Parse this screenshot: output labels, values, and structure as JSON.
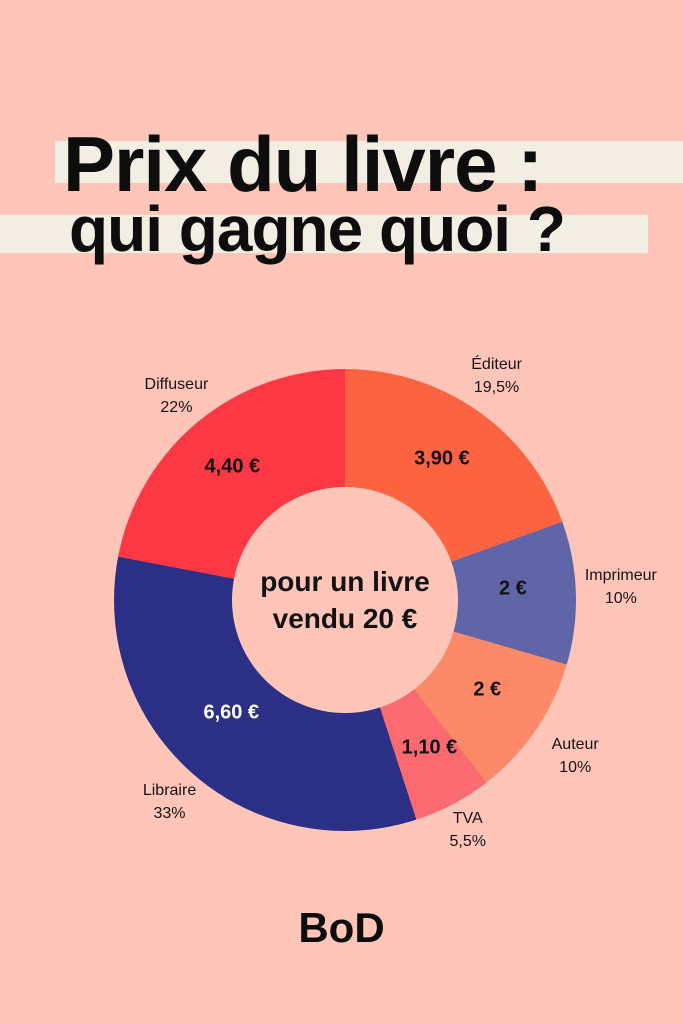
{
  "page": {
    "background": "#FFC5B9",
    "highlight": "#F2EEE3",
    "text_color": "#121212"
  },
  "title": {
    "line1": "Prix du livre :",
    "line2": "qui gagne quoi ?"
  },
  "chart_data": {
    "type": "pie",
    "subtype": "donut",
    "start_angle_deg": 0,
    "direction": "clockwise",
    "unit": "€",
    "center_label_line1": "pour un livre",
    "center_label_line2": "vendu 20 €",
    "segments": [
      {
        "name": "Éditeur",
        "pct": 19.5,
        "pct_label": "19,5%",
        "amount": 3.9,
        "amount_label": "3,90 €",
        "color": "#FB6341",
        "value_color": "#121212"
      },
      {
        "name": "Imprimeur",
        "pct": 10,
        "pct_label": "10%",
        "amount": 2,
        "amount_label": "2 €",
        "color": "#6065A7",
        "value_color": "#121212"
      },
      {
        "name": "Auteur",
        "pct": 10,
        "pct_label": "10%",
        "amount": 2,
        "amount_label": "2 €",
        "color": "#FC8A68",
        "value_color": "#121212"
      },
      {
        "name": "TVA",
        "pct": 5.5,
        "pct_label": "5,5%",
        "amount": 1.1,
        "amount_label": "1,10 €",
        "color": "#FA6A70",
        "value_color": "#121212"
      },
      {
        "name": "Libraire",
        "pct": 33,
        "pct_label": "33%",
        "amount": 6.6,
        "amount_label": "6,60 €",
        "color": "#2B2F86",
        "value_color": "#FFFFFF"
      },
      {
        "name": "Diffuseur",
        "pct": 22,
        "pct_label": "22%",
        "amount": 4.4,
        "amount_label": "4,40 €",
        "color": "#FC3844",
        "value_color": "#121212"
      }
    ]
  },
  "footer": {
    "logo": "BoD"
  }
}
